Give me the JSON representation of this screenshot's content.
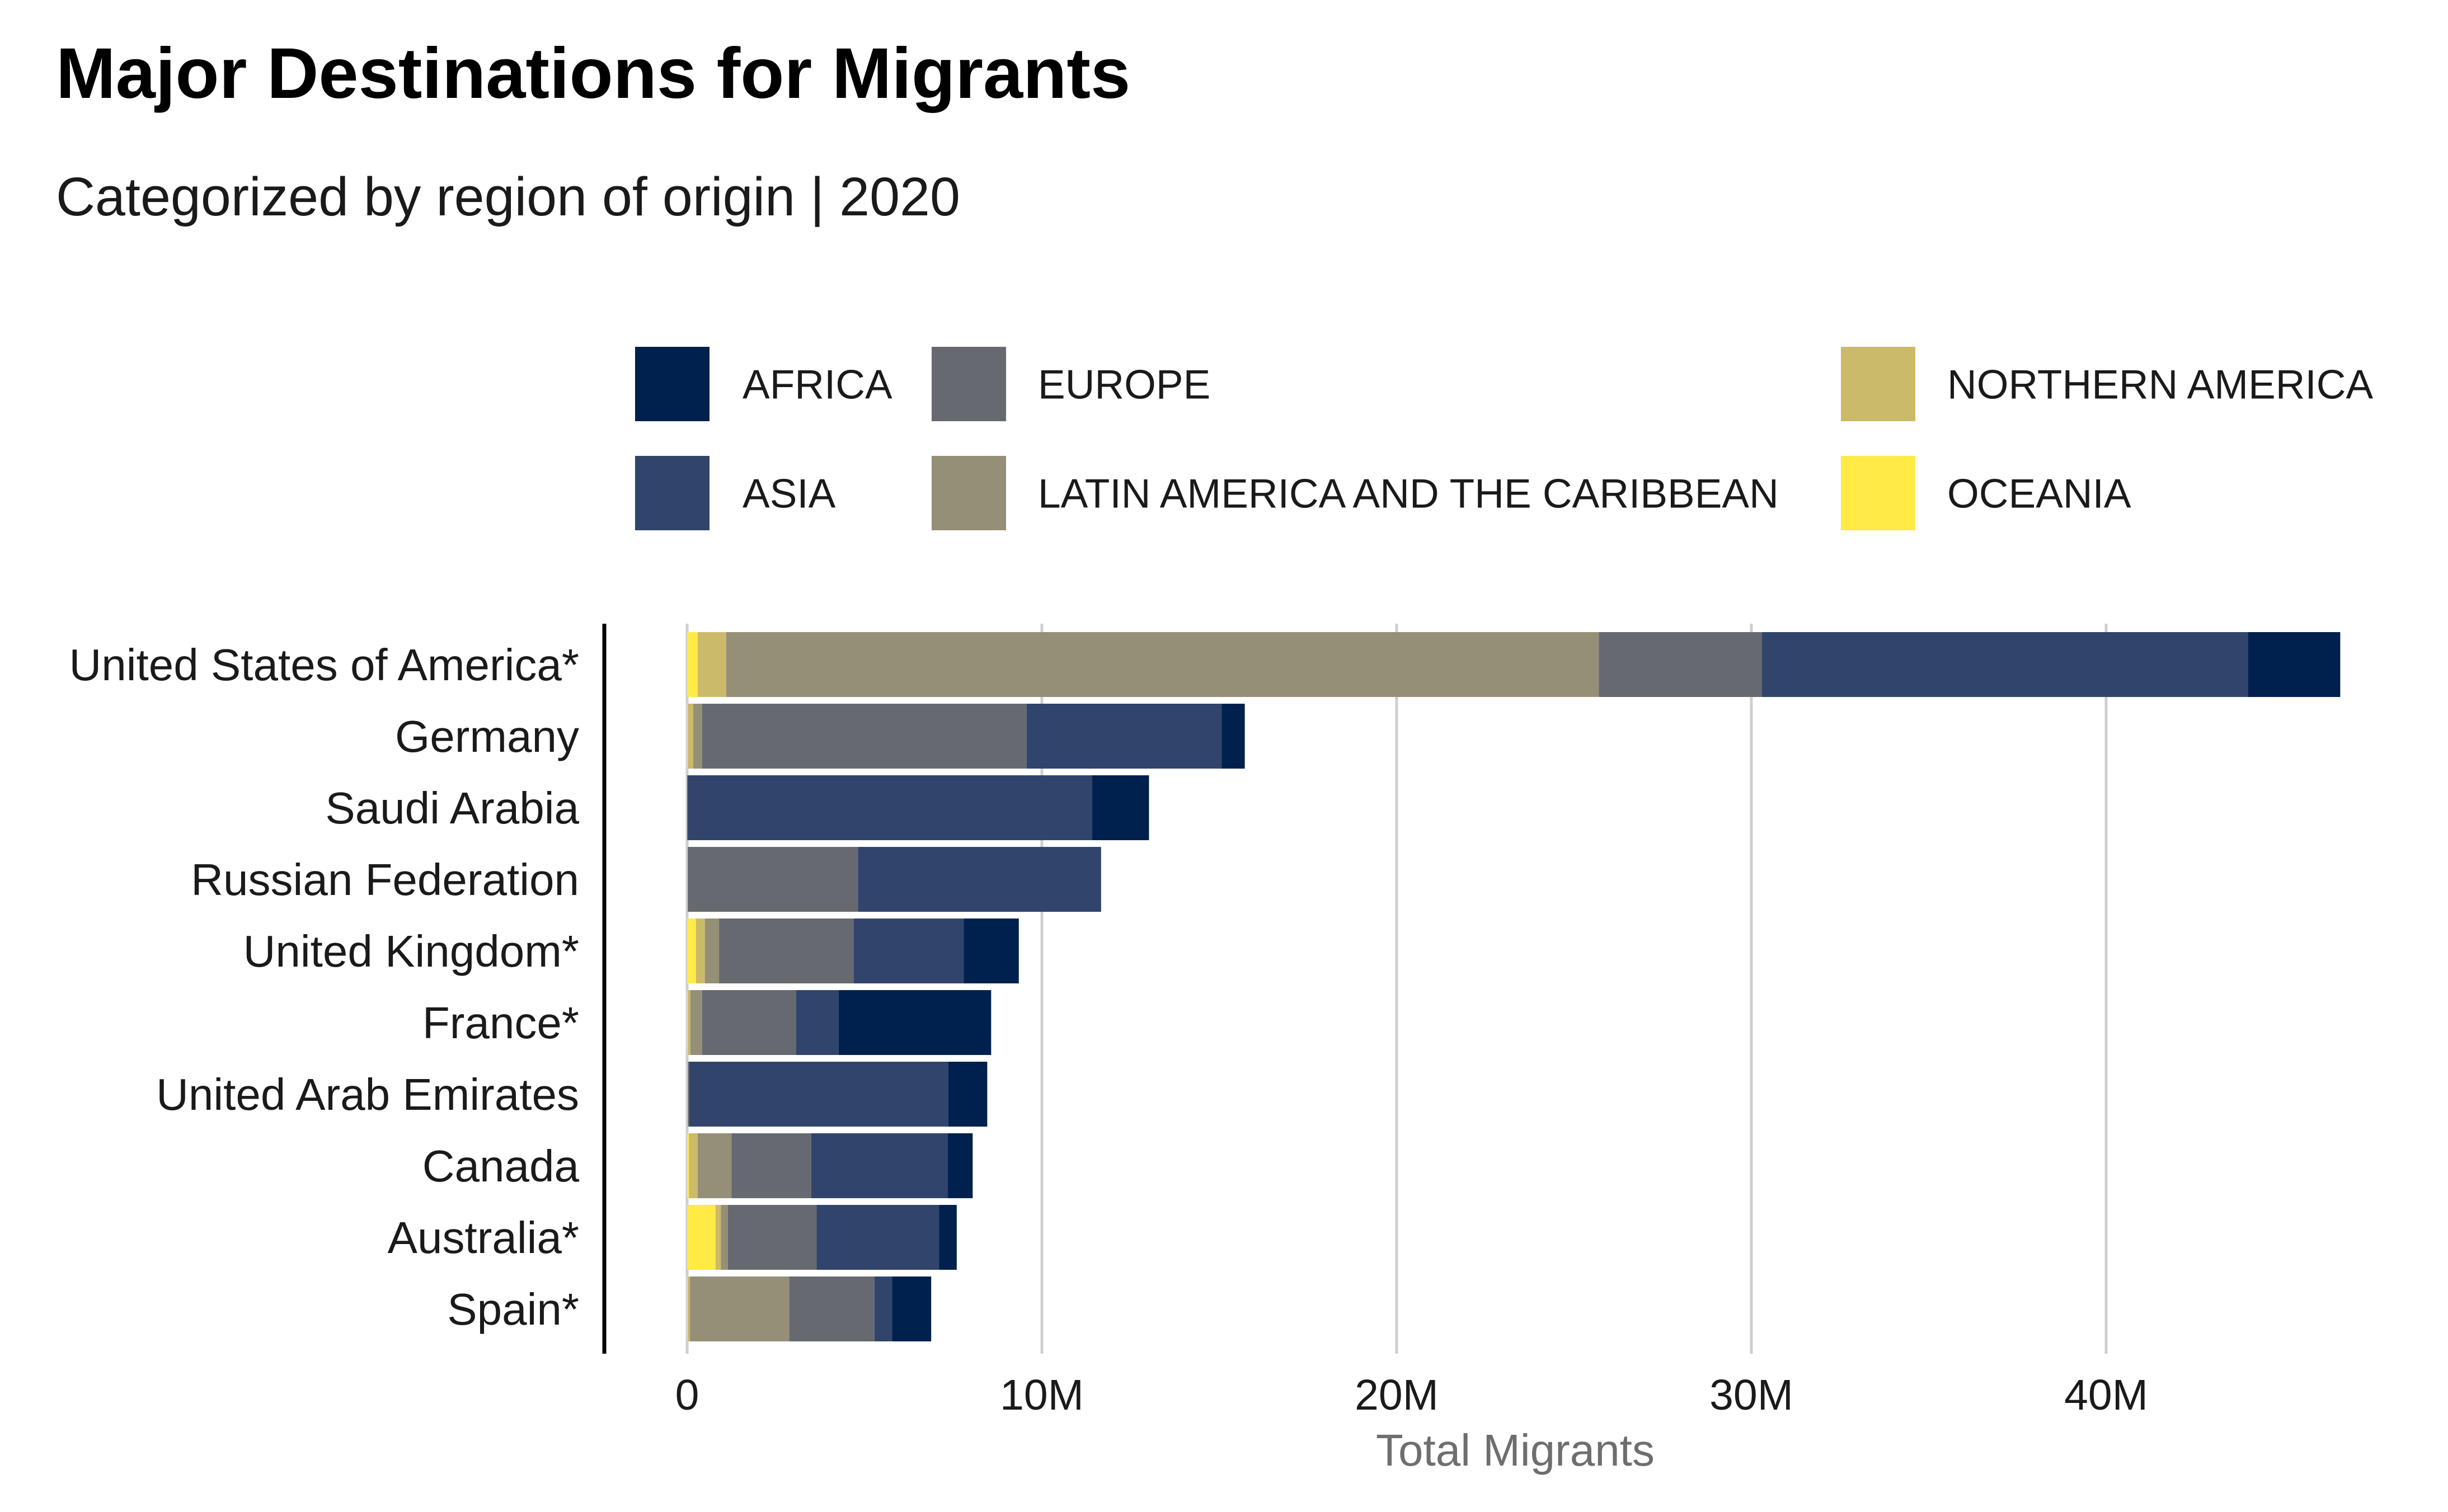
{
  "chart_data": {
    "type": "bar",
    "orientation": "horizontal",
    "stacked": true,
    "title": "Major Destinations for Migrants",
    "subtitle": "Categorized by region of origin | 2020",
    "xlabel": "Total Migrants",
    "ylabel": "",
    "xlim": [
      0,
      47000000
    ],
    "x_ticks": [
      0,
      10000000,
      20000000,
      30000000,
      40000000
    ],
    "x_tick_labels": [
      "0",
      "10M",
      "20M",
      "30M",
      "40M"
    ],
    "grid": "vertical major lines",
    "legend_position": "top",
    "stack_order": [
      "OCEANIA",
      "NORTHERN AMERICA",
      "LATIN AMERICA AND THE CARIBBEAN",
      "EUROPE",
      "ASIA",
      "AFRICA"
    ],
    "legend": [
      {
        "name": "AFRICA",
        "color": "#00204d"
      },
      {
        "name": "ASIA",
        "color": "#31446b"
      },
      {
        "name": "EUROPE",
        "color": "#666970"
      },
      {
        "name": "LATIN AMERICA AND THE CARIBBEAN",
        "color": "#958f78"
      },
      {
        "name": "NORTHERN AMERICA",
        "color": "#cbba69"
      },
      {
        "name": "OCEANIA",
        "color": "#ffea46"
      }
    ],
    "categories": [
      "United States of America*",
      "Germany",
      "Saudi Arabia",
      "Russian Federation",
      "United Kingdom*",
      "France*",
      "United Arab Emirates",
      "Canada",
      "Australia*",
      "Spain*"
    ],
    "series": [
      {
        "name": "OCEANIA",
        "color": "#ffea46",
        "values": [
          300000,
          20000,
          0,
          10000,
          250000,
          20000,
          10000,
          50000,
          800000,
          20000
        ]
      },
      {
        "name": "NORTHERN AMERICA",
        "color": "#cbba69",
        "values": [
          800000,
          150000,
          0,
          10000,
          250000,
          70000,
          10000,
          250000,
          150000,
          60000
        ]
      },
      {
        "name": "LATIN AMERICA AND THE CARIBBEAN",
        "color": "#958f78",
        "values": [
          24600000,
          250000,
          0,
          0,
          400000,
          330000,
          10000,
          950000,
          200000,
          2800000
        ]
      },
      {
        "name": "EUROPE",
        "color": "#666970",
        "values": [
          4600000,
          9150000,
          20000,
          4800000,
          3800000,
          2650000,
          30000,
          2250000,
          2500000,
          2400000
        ]
      },
      {
        "name": "ASIA",
        "color": "#31446b",
        "values": [
          13700000,
          5500000,
          11400000,
          6850000,
          3100000,
          1200000,
          7300000,
          3850000,
          3450000,
          500000
        ]
      },
      {
        "name": "AFRICA",
        "color": "#00204d",
        "values": [
          2600000,
          650000,
          1600000,
          0,
          1550000,
          4300000,
          1100000,
          700000,
          500000,
          1100000
        ]
      }
    ]
  }
}
